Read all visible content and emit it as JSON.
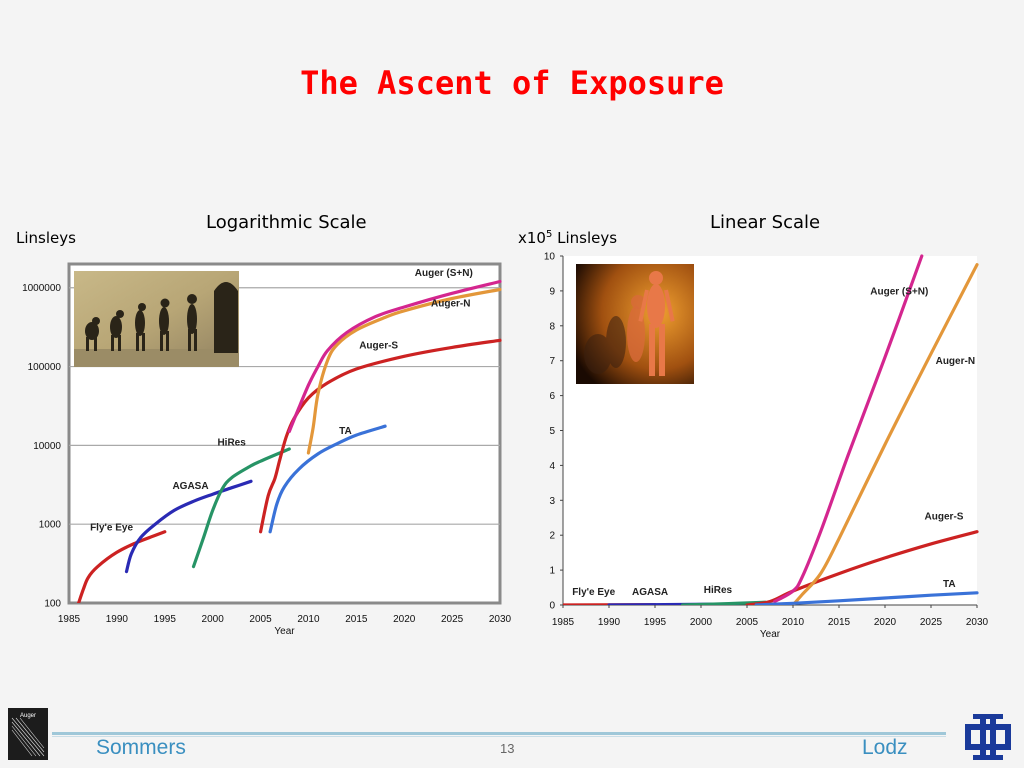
{
  "slide": {
    "title": "The Ascent of Exposure",
    "footer_left": "Sommers",
    "footer_right": "Lodz",
    "page_number": "13",
    "logo_left_text": "Auger"
  },
  "chart_data": [
    {
      "type": "line",
      "title": "Logarithmic Scale",
      "ylabel": "Linsleys",
      "xlabel": "Year",
      "yscale": "log",
      "xlim": [
        1985,
        2030
      ],
      "ylim": [
        100,
        2000000
      ],
      "xticks": [
        1985,
        1990,
        1995,
        2000,
        2005,
        2010,
        2015,
        2020,
        2025,
        2030
      ],
      "yticks": [
        100,
        1000,
        10000,
        100000,
        1000000
      ],
      "ytick_labels": [
        "100",
        "1000",
        "10000",
        "100000",
        "1000000"
      ],
      "grid": true,
      "series": [
        {
          "name": "Fly'e Eye",
          "color": "#cc2222",
          "label_at": [
            1987.2,
            830
          ],
          "points": [
            [
              1986,
              100
            ],
            [
              1986.5,
              150
            ],
            [
              1987,
              210
            ],
            [
              1988,
              290
            ],
            [
              1990,
              440
            ],
            [
              1992,
              580
            ],
            [
              1994,
              720
            ],
            [
              1995,
              800
            ]
          ]
        },
        {
          "name": "AGASA",
          "color": "#2a2ab4",
          "label_at": [
            1995.8,
            2800
          ],
          "points": [
            [
              1991,
              250
            ],
            [
              1991.5,
              420
            ],
            [
              1992.5,
              680
            ],
            [
              1994,
              1000
            ],
            [
              1996,
              1500
            ],
            [
              1998,
              1950
            ],
            [
              2000,
              2400
            ],
            [
              2002,
              2900
            ],
            [
              2004,
              3500
            ]
          ]
        },
        {
          "name": "HiRes",
          "color": "#279466",
          "label_at": [
            2000.5,
            10000
          ],
          "points": [
            [
              1998,
              290
            ],
            [
              1999,
              650
            ],
            [
              2000,
              1500
            ],
            [
              2001,
              2800
            ],
            [
              2002,
              3900
            ],
            [
              2004,
              5500
            ],
            [
              2005,
              6300
            ],
            [
              2007,
              8000
            ],
            [
              2008,
              9000
            ]
          ]
        },
        {
          "name": "Auger-S",
          "color": "#cc2222",
          "label_at": [
            2015.3,
            170000
          ],
          "points": [
            [
              2005,
              800
            ],
            [
              2005.8,
              2300
            ],
            [
              2006.5,
              3800
            ],
            [
              2007,
              6500
            ],
            [
              2007.7,
              13000
            ],
            [
              2008.5,
              22000
            ],
            [
              2010,
              40000
            ],
            [
              2012,
              62000
            ],
            [
              2015,
              93000
            ],
            [
              2020,
              135000
            ],
            [
              2025,
              175000
            ],
            [
              2030,
              215000
            ]
          ]
        },
        {
          "name": "Auger-N",
          "color": "#e3973a",
          "label_at": [
            2022.8,
            580000
          ],
          "points": [
            [
              2010,
              8000
            ],
            [
              2010.5,
              17000
            ],
            [
              2011,
              45000
            ],
            [
              2012,
              120000
            ],
            [
              2013,
              190000
            ],
            [
              2015,
              290000
            ],
            [
              2018,
              420000
            ],
            [
              2020,
              510000
            ],
            [
              2025,
              730000
            ],
            [
              2030,
              950000
            ]
          ]
        },
        {
          "name": "Auger (S+N)",
          "color": "#d4268f",
          "label_at": [
            2021.1,
            1400000
          ],
          "points": [
            [
              2008,
              15000
            ],
            [
              2009,
              30000
            ],
            [
              2010,
              58000
            ],
            [
              2011,
              100000
            ],
            [
              2012,
              160000
            ],
            [
              2014,
              270000
            ],
            [
              2017,
              430000
            ],
            [
              2020,
              570000
            ],
            [
              2025,
              850000
            ],
            [
              2030,
              1200000
            ]
          ]
        },
        {
          "name": "TA",
          "color": "#3a72d8",
          "label_at": [
            2013.2,
            14000
          ],
          "points": [
            [
              2006,
              800
            ],
            [
              2006.7,
              1800
            ],
            [
              2007.5,
              3000
            ],
            [
              2009,
              5000
            ],
            [
              2011,
              7800
            ],
            [
              2013,
              10500
            ],
            [
              2015,
              13500
            ],
            [
              2018,
              17500
            ]
          ]
        }
      ]
    },
    {
      "type": "line",
      "title": "Linear Scale",
      "ylabel_prefix": "x10",
      "ylabel_exp": "5",
      "ylabel_suffix": " Linsleys",
      "xlabel": "Year",
      "yscale": "linear",
      "xlim": [
        1985,
        2030
      ],
      "ylim": [
        0,
        10
      ],
      "xticks": [
        1985,
        1990,
        1995,
        2000,
        2005,
        2010,
        2015,
        2020,
        2025,
        2030
      ],
      "yticks": [
        0,
        1,
        2,
        3,
        4,
        5,
        6,
        7,
        8,
        9,
        10
      ],
      "grid": false,
      "series": [
        {
          "name": "Fly'e Eye",
          "color": "#cc2222",
          "label_at": [
            1986,
            0.28
          ],
          "points": [
            [
              1985,
              0
            ],
            [
              1995,
              0.01
            ]
          ]
        },
        {
          "name": "AGASA",
          "color": "#2a2ab4",
          "label_at": [
            1992.5,
            0.28
          ],
          "points": [
            [
              1990,
              0
            ],
            [
              2004,
              0.03
            ]
          ]
        },
        {
          "name": "HiRes",
          "color": "#279466",
          "label_at": [
            2000.3,
            0.35
          ],
          "points": [
            [
              1998,
              0
            ],
            [
              2003,
              0.04
            ],
            [
              2007,
              0.08
            ]
          ]
        },
        {
          "name": "Auger-S",
          "color": "#cc2222",
          "label_at": [
            2024.3,
            2.45
          ],
          "points": [
            [
              2005,
              0
            ],
            [
              2007.5,
              0.1
            ],
            [
              2010,
              0.4
            ],
            [
              2015,
              0.9
            ],
            [
              2020,
              1.35
            ],
            [
              2025,
              1.75
            ],
            [
              2030,
              2.1
            ]
          ]
        },
        {
          "name": "Auger-N",
          "color": "#e3973a",
          "label_at": [
            2025.5,
            6.9
          ],
          "points": [
            [
              2010,
              0
            ],
            [
              2011,
              0.3
            ],
            [
              2013,
              0.9
            ],
            [
              2015,
              1.9
            ],
            [
              2020,
              4.6
            ],
            [
              2025,
              7.2
            ],
            [
              2030,
              9.75
            ]
          ]
        },
        {
          "name": "Auger (S+N)",
          "color": "#d4268f",
          "label_at": [
            2018.4,
            8.9
          ],
          "points": [
            [
              2008,
              0.1
            ],
            [
              2010,
              0.4
            ],
            [
              2011,
              0.8
            ],
            [
              2013,
              2.1
            ],
            [
              2016,
              4.3
            ],
            [
              2020,
              7.1
            ],
            [
              2024,
              10
            ]
          ]
        },
        {
          "name": "TA",
          "color": "#3a72d8",
          "label_at": [
            2026.3,
            0.52
          ],
          "points": [
            [
              2006,
              0
            ],
            [
              2010,
              0.05
            ],
            [
              2015,
              0.12
            ],
            [
              2020,
              0.2
            ],
            [
              2025,
              0.28
            ],
            [
              2030,
              0.35
            ]
          ]
        }
      ]
    }
  ]
}
